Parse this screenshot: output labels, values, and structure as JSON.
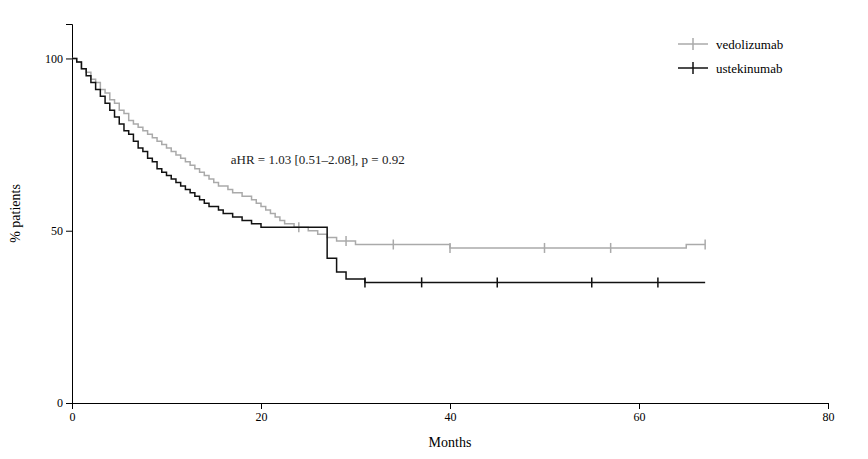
{
  "chart_data": {
    "type": "step",
    "xlabel": "Months",
    "ylabel": "% patients",
    "xlim": [
      0,
      80
    ],
    "ylim": [
      0,
      110
    ],
    "xticks": [
      0,
      20,
      40,
      60,
      80
    ],
    "yticks": [
      0,
      50,
      100
    ],
    "annotation": "aHR = 1.03 [0.51–2.08], p = 0.92",
    "legend": "upper right",
    "series": [
      {
        "name": "vedolizumab",
        "color": "#aaaaaa",
        "x": [
          0,
          0.5,
          1,
          1.5,
          2,
          2.5,
          3,
          3.5,
          4,
          4.5,
          5,
          5.5,
          6,
          6.5,
          7,
          7.5,
          8,
          8.5,
          9,
          9.5,
          10,
          10.5,
          11,
          11.5,
          12,
          12.5,
          13,
          13.5,
          14,
          14.5,
          15,
          15.5,
          16,
          16.5,
          17,
          17.5,
          18,
          18.5,
          19,
          19.5,
          20,
          20.5,
          21,
          21.5,
          22,
          22.5,
          23,
          23.5,
          24,
          25,
          26,
          27,
          28,
          29,
          30,
          32,
          34,
          36,
          40,
          45,
          50,
          55,
          60,
          65,
          67
        ],
        "values": [
          100,
          99,
          97,
          96,
          94,
          93,
          91,
          90,
          88,
          87,
          85,
          84,
          82,
          81,
          80,
          79,
          78,
          77,
          76,
          75,
          74,
          73,
          72,
          71,
          70,
          69,
          68,
          67,
          66,
          65,
          64,
          63,
          63,
          62,
          61,
          61,
          60,
          60,
          59,
          58,
          57,
          56,
          55,
          54,
          53,
          52,
          52,
          51,
          51,
          50,
          49,
          48,
          47,
          47,
          46,
          46,
          46,
          46,
          45,
          45,
          45,
          45,
          45,
          46,
          46
        ],
        "censored": {
          "x": [
            24,
            29,
            34,
            40,
            50,
            57,
            67
          ],
          "values": [
            51,
            47,
            46,
            45,
            45,
            45,
            46
          ]
        }
      },
      {
        "name": "ustekinumab",
        "color": "#111111",
        "x": [
          0,
          0.5,
          1,
          1.5,
          2,
          2.5,
          3,
          3.5,
          4,
          4.5,
          5,
          5.5,
          6,
          6.5,
          7,
          7.5,
          8,
          8.5,
          9,
          9.5,
          10,
          10.5,
          11,
          11.5,
          12,
          12.5,
          13,
          13.5,
          14,
          14.5,
          15,
          15.5,
          16,
          16.5,
          17,
          17.5,
          18,
          18.5,
          19,
          19.5,
          20,
          20.5,
          21,
          21.5,
          22,
          23,
          24,
          25,
          26,
          27,
          28,
          29,
          30,
          31,
          33,
          35,
          37,
          40,
          45,
          50,
          55,
          60,
          65,
          67
        ],
        "values": [
          100,
          99,
          97,
          95,
          93,
          91,
          89,
          87,
          85,
          83,
          81,
          79,
          78,
          76,
          74,
          73,
          71,
          70,
          68,
          67,
          66,
          65,
          64,
          63,
          62,
          61,
          60,
          59,
          58,
          57,
          57,
          56,
          55,
          55,
          54,
          54,
          53,
          53,
          52,
          52,
          51,
          51,
          51,
          51,
          51,
          51,
          51,
          51,
          51,
          42,
          38,
          36,
          36,
          35,
          35,
          35,
          35,
          35,
          35,
          35,
          35,
          35,
          35,
          35
        ],
        "censored": {
          "x": [
            31,
            37,
            45,
            55,
            62
          ],
          "values": [
            35,
            35,
            35,
            35,
            35
          ]
        }
      }
    ]
  }
}
